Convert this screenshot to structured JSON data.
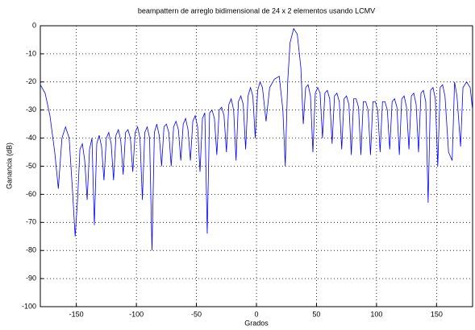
{
  "chart_data": {
    "type": "line",
    "title": "beampattern de arreglo bidimensional de 24 x 2 elementos usando LCMV",
    "xlabel": "Grados",
    "ylabel": "Ganancia (dB)",
    "xlim": [
      -180,
      180
    ],
    "ylim": [
      -100,
      0
    ],
    "xticks": [
      -150,
      -100,
      -50,
      0,
      50,
      100,
      150
    ],
    "yticks": [
      0,
      -10,
      -20,
      -30,
      -40,
      -50,
      -60,
      -70,
      -80,
      -90,
      -100
    ],
    "grid": true,
    "series": [
      {
        "color": "#0000ff",
        "x": [
          -180,
          -176,
          -172,
          -168,
          -165,
          -162,
          -159,
          -156,
          -153,
          -151,
          -149,
          -147,
          -145,
          -143,
          -141,
          -139,
          -137,
          -135,
          -133,
          -131,
          -129,
          -127,
          -125,
          -123,
          -121,
          -119,
          -117,
          -115,
          -113,
          -111,
          -109,
          -107,
          -105,
          -103,
          -101,
          -99,
          -97,
          -95,
          -93,
          -91,
          -89,
          -87,
          -85,
          -83,
          -81,
          -79,
          -77,
          -75,
          -73,
          -71,
          -69,
          -67,
          -65,
          -63,
          -61,
          -59,
          -57,
          -55,
          -53,
          -51,
          -49,
          -47,
          -45,
          -43,
          -41,
          -39,
          -37,
          -35,
          -33,
          -31,
          -29,
          -27,
          -25,
          -23,
          -21,
          -19,
          -17,
          -15,
          -13,
          -11,
          -9,
          -7,
          -5,
          -3,
          -1,
          1,
          3,
          5,
          8,
          11,
          15,
          19,
          22,
          24,
          26,
          28,
          31,
          34,
          37,
          39,
          41,
          43,
          45,
          47,
          49,
          51,
          53,
          55,
          57,
          59,
          61,
          63,
          65,
          67,
          69,
          71,
          73,
          75,
          77,
          79,
          81,
          83,
          85,
          87,
          89,
          91,
          93,
          95,
          97,
          99,
          101,
          103,
          105,
          107,
          109,
          111,
          113,
          115,
          117,
          119,
          121,
          123,
          125,
          127,
          129,
          131,
          133,
          135,
          137,
          139,
          141,
          143,
          145,
          147,
          149,
          151,
          153,
          155,
          157,
          160,
          163,
          165,
          167,
          170,
          172,
          175,
          178,
          180
        ],
        "values": [
          -21,
          -24,
          -32,
          -45,
          -58,
          -40,
          -36,
          -40,
          -60,
          -75,
          -62,
          -44,
          -42,
          -48,
          -62,
          -44,
          -40,
          -71,
          -42,
          -39,
          -43,
          -55,
          -40,
          -38,
          -42,
          -55,
          -39,
          -37,
          -41,
          -53,
          -38,
          -37,
          -40,
          -52,
          -38,
          -36,
          -40,
          -62,
          -38,
          -36,
          -40,
          -80,
          -38,
          -35,
          -39,
          -50,
          -36,
          -35,
          -38,
          -50,
          -36,
          -34,
          -37,
          -48,
          -35,
          -33,
          -37,
          -48,
          -34,
          -32,
          -36,
          -52,
          -33,
          -31,
          -74,
          -31,
          -30,
          -33,
          -46,
          -30,
          -29,
          -32,
          -45,
          -28,
          -26,
          -30,
          -48,
          -27,
          -25,
          -28,
          -44,
          -25,
          -22,
          -25,
          -40,
          -23,
          -20,
          -22,
          -34,
          -22,
          -19,
          -18,
          -30,
          -50,
          -20,
          -6,
          -1,
          -3,
          -15,
          -35,
          -22,
          -21,
          -25,
          -45,
          -24,
          -22,
          -24,
          -40,
          -24,
          -23,
          -26,
          -42,
          -25,
          -24,
          -27,
          -44,
          -26,
          -25,
          -28,
          -46,
          -26,
          -26,
          -29,
          -46,
          -27,
          -27,
          -30,
          -46,
          -27,
          -27,
          -30,
          -45,
          -27,
          -27,
          -30,
          -44,
          -27,
          -26,
          -29,
          -46,
          -26,
          -25,
          -29,
          -44,
          -25,
          -24,
          -28,
          -45,
          -24,
          -23,
          -27,
          -63,
          -23,
          -22,
          -26,
          -50,
          -22,
          -21,
          -25,
          -45,
          -48,
          -20,
          -25,
          -43,
          -22,
          -20,
          -22,
          -30
        ]
      }
    ]
  }
}
